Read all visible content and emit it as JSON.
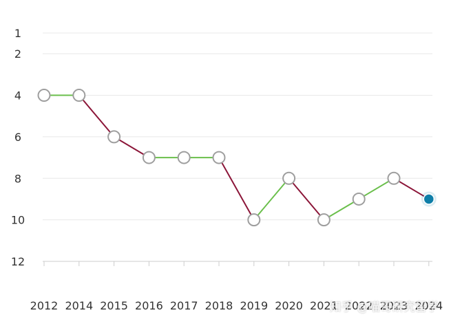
{
  "chart_data": {
    "type": "line",
    "title": "",
    "xlabel": "",
    "ylabel": "",
    "x": [
      "2012",
      "2014",
      "2015",
      "2016",
      "2017",
      "2018",
      "2019",
      "2020",
      "2021",
      "2022",
      "2023",
      "2024"
    ],
    "values": [
      4,
      4,
      6,
      7,
      7,
      7,
      10,
      8,
      10,
      9,
      8,
      9
    ],
    "y_ticks": [
      "1",
      "2",
      "4",
      "6",
      "8",
      "10",
      "12"
    ],
    "y_axis_inverted": true,
    "ylim": [
      12,
      1
    ],
    "grid": true,
    "colors": {
      "improve": "#6abf4b",
      "decline": "#8b1538",
      "flat": "#6abf4b",
      "marker_fill": "#ffffff",
      "marker_stroke": "#9e9e9e",
      "last_marker": "#0e7ea8",
      "grid": "#e8e8e8",
      "axis": "#cccccc"
    }
  },
  "watermark": "知乎 @喵哥研究留学"
}
